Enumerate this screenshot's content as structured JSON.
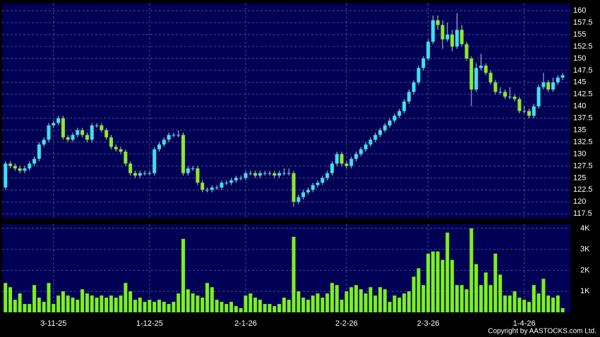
{
  "chart_data": {
    "type": "candlestick",
    "xticks": [
      {
        "value": 10,
        "label": "3-11-25"
      },
      {
        "value": 30,
        "label": "1-12-25"
      },
      {
        "value": 50,
        "label": "2-1-26"
      },
      {
        "value": 71,
        "label": "2-2-26"
      },
      {
        "value": 88,
        "label": "2-3-26"
      },
      {
        "value": 108,
        "label": "1-4-26"
      }
    ],
    "xlim": [
      -0.7,
      117.6
    ],
    "ylim": [
      116.5,
      161.5
    ],
    "yticks": [
      117.5,
      120,
      122.5,
      125,
      127.5,
      130,
      132.5,
      135,
      137.5,
      140,
      142.5,
      145,
      147.5,
      150,
      152.5,
      155,
      157.5,
      160
    ],
    "y2lim": [
      0,
      4200
    ],
    "y2ticks": [
      {
        "value": 1000,
        "label": "1K"
      },
      {
        "value": 2000,
        "label": "2K"
      },
      {
        "value": 3000,
        "label": "3K"
      },
      {
        "value": 4000,
        "label": "4K"
      }
    ],
    "grid": true,
    "up_color": "#3ee0f0",
    "down_color": "#8ee82a",
    "volume_color": "#7cf01e",
    "open": [
      123,
      128,
      127.5,
      127,
      126.5,
      127,
      128,
      129,
      132,
      133,
      136,
      136.5,
      137.5,
      133.5,
      133,
      134,
      135,
      134,
      133,
      136,
      136,
      135,
      133.5,
      131.5,
      131,
      130.5,
      128,
      126,
      125.5,
      126,
      126,
      126,
      131,
      132,
      133,
      134,
      134,
      134,
      126,
      127,
      127,
      124,
      122.5,
      122.5,
      123,
      123,
      124,
      124,
      124.5,
      125,
      125,
      126,
      126,
      125.5,
      126,
      126,
      126,
      125.5,
      126,
      126,
      126,
      120,
      121,
      122,
      122.5,
      123.5,
      124,
      125,
      126,
      128,
      130,
      128,
      127.5,
      129,
      130,
      131,
      132,
      133,
      134,
      135,
      136,
      137,
      138,
      139,
      141,
      143,
      145,
      148,
      150,
      153.5,
      158,
      157,
      154,
      155,
      152.5,
      156,
      153,
      150,
      143.5,
      148,
      148.5,
      147,
      145,
      143,
      143,
      142,
      142,
      141.5,
      139,
      139,
      138,
      140,
      144,
      145,
      143.5,
      145,
      146
    ],
    "high": [
      128.5,
      128.5,
      128,
      127.5,
      127.5,
      128.5,
      129.5,
      132.5,
      133.5,
      136.5,
      137,
      138,
      138,
      134,
      134.5,
      135.5,
      135.5,
      134.5,
      136.5,
      136.5,
      136.5,
      135.5,
      134,
      132,
      131.5,
      131,
      128.5,
      126.5,
      126.5,
      126.5,
      126.5,
      131.5,
      132.5,
      133.5,
      134.5,
      134.5,
      135,
      134.5,
      127.5,
      127.5,
      127.5,
      124.5,
      123,
      123.5,
      123.5,
      124.5,
      124.5,
      125,
      125.5,
      125.5,
      126.5,
      126.5,
      126.5,
      126.5,
      126.5,
      126.5,
      126.5,
      126.5,
      127,
      127,
      126.5,
      121.5,
      122.5,
      123,
      124,
      124.5,
      125.5,
      126.5,
      128.5,
      130.5,
      130.5,
      128.5,
      129.5,
      130.5,
      131.5,
      132.5,
      133.5,
      134.5,
      135.5,
      136.5,
      137.5,
      138.5,
      139.5,
      141.5,
      143.5,
      145.5,
      148.5,
      150.5,
      154,
      159,
      159,
      158,
      157.5,
      156,
      159.5,
      157,
      153.5,
      150.5,
      149,
      151,
      149,
      147.5,
      145.5,
      144,
      143.5,
      144,
      142.5,
      142,
      140,
      139.5,
      140.5,
      144.5,
      147,
      145.5,
      146,
      146.5,
      147
    ],
    "low": [
      122.5,
      127,
      126.5,
      126,
      126,
      126.5,
      127.5,
      128.5,
      131.5,
      132.5,
      135.5,
      136,
      133,
      132.5,
      132.5,
      133.5,
      133.5,
      132.5,
      132.5,
      135.5,
      134.5,
      133,
      131,
      130.5,
      130,
      127.5,
      125.5,
      125,
      125,
      125.5,
      125.5,
      125.5,
      130.5,
      131.5,
      132.5,
      133.5,
      133.5,
      125.5,
      125.5,
      126.5,
      123.5,
      122,
      122,
      122,
      122.5,
      122.5,
      123.5,
      123.5,
      124,
      124.5,
      124.5,
      125.5,
      125,
      125,
      125.5,
      125.5,
      125,
      125,
      125.5,
      125.5,
      119,
      119.5,
      120.5,
      121.5,
      122,
      123,
      123.5,
      124.5,
      125.5,
      127.5,
      127.5,
      127,
      127,
      128.5,
      129.5,
      130.5,
      131.5,
      132.5,
      133.5,
      134.5,
      135.5,
      136.5,
      137.5,
      138.5,
      140.5,
      142.5,
      144.5,
      147.5,
      149.5,
      153,
      156,
      152,
      153.5,
      151.5,
      152,
      152.5,
      149.5,
      140,
      143,
      147.5,
      146.5,
      144.5,
      142.5,
      142.5,
      141.5,
      141.5,
      141,
      138.5,
      138.5,
      137.5,
      137.5,
      139.5,
      143.5,
      143,
      143,
      144.5,
      145.5
    ],
    "close": [
      128,
      127.5,
      127,
      126.5,
      127,
      128,
      129,
      132,
      133,
      136,
      136.5,
      137.5,
      133.5,
      133,
      134,
      135,
      134,
      133,
      136,
      136,
      135,
      133.5,
      131.5,
      131,
      130.5,
      128,
      126,
      125.5,
      126,
      126,
      126,
      131,
      132,
      133,
      134,
      134,
      134,
      126,
      127,
      127,
      124,
      122.5,
      122.5,
      123,
      123,
      124,
      124,
      124.5,
      125,
      125,
      126,
      126,
      125.5,
      126,
      126,
      126,
      125.5,
      126,
      126,
      126,
      120,
      121,
      122,
      122.5,
      123.5,
      124,
      125,
      126,
      128,
      130,
      128,
      127.5,
      129,
      130,
      131,
      132,
      133,
      134,
      135,
      136,
      137,
      138,
      139,
      141,
      143,
      145,
      148,
      150,
      153.5,
      158,
      157,
      154,
      155,
      152.5,
      156,
      153,
      150,
      143.5,
      148,
      148.5,
      147,
      145,
      143,
      143,
      142,
      142,
      141.5,
      139,
      139,
      138,
      140,
      144,
      145,
      143.5,
      145,
      146,
      146.5
    ],
    "volume": [
      1400,
      1200,
      600,
      900,
      400,
      400,
      1300,
      700,
      500,
      1400,
      400,
      800,
      1000,
      800,
      700,
      600,
      1100,
      900,
      800,
      700,
      800,
      700,
      800,
      700,
      800,
      1400,
      1000,
      600,
      700,
      500,
      600,
      500,
      600,
      500,
      400,
      500,
      900,
      3500,
      1100,
      900,
      800,
      700,
      1400,
      1200,
      600,
      500,
      400,
      500,
      300,
      200,
      800,
      900,
      700,
      600,
      400,
      400,
      300,
      400,
      700,
      600,
      3600,
      1000,
      700,
      600,
      800,
      900,
      700,
      900,
      1400,
      1300,
      600,
      1000,
      1200,
      1300,
      1100,
      900,
      1200,
      800,
      1200,
      1100,
      500,
      800,
      700,
      900,
      1000,
      1700,
      2100,
      1300,
      2800,
      2900,
      2900,
      2500,
      3800,
      2500,
      1300,
      1300,
      1100,
      4000,
      2300,
      1300,
      1900,
      1300,
      2800,
      1800,
      800,
      800,
      1000,
      700,
      600,
      500,
      1300,
      900,
      1600,
      800,
      700,
      800,
      200
    ]
  },
  "copyright": "Copyright by AASTOCKS.com Ltd."
}
